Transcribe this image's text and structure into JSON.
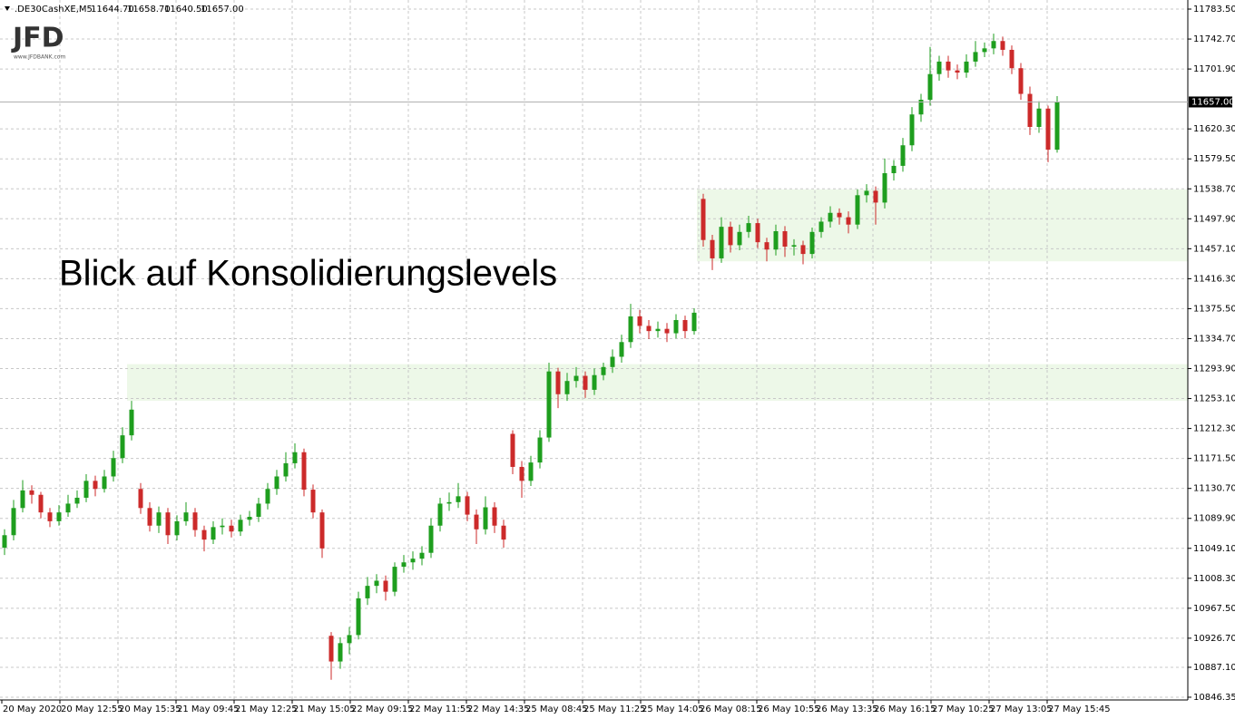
{
  "chart_data": {
    "type": "candlestick",
    "symbol": ".DE30CashXE,M5",
    "header_prices": [
      "11644.70",
      "11658.70",
      "11640.50",
      "11657.00"
    ],
    "annotation": "Blick auf Konsolidierungslevels",
    "logo": {
      "brand": "JFD",
      "url": "www.JFDBANK.com"
    },
    "up_color": "#1e9e1e",
    "down_color": "#cc2a2a",
    "grid": true,
    "ylim": [
      10842.6,
      11793.4
    ],
    "yticks": [
      {
        "value": 11783.5,
        "label": "11783.50"
      },
      {
        "value": 11742.7,
        "label": "11742.70"
      },
      {
        "value": 11701.9,
        "label": "11701.90"
      },
      {
        "value": 11620.3,
        "label": "11620.30"
      },
      {
        "value": 11579.5,
        "label": "11579.50"
      },
      {
        "value": 11538.7,
        "label": "11538.70"
      },
      {
        "value": 11497.9,
        "label": "11497.90"
      },
      {
        "value": 11457.1,
        "label": "11457.10"
      },
      {
        "value": 11416.3,
        "label": "11416.30"
      },
      {
        "value": 11375.5,
        "label": "11375.50"
      },
      {
        "value": 11334.7,
        "label": "11334.70"
      },
      {
        "value": 11293.9,
        "label": "11293.90"
      },
      {
        "value": 11253.1,
        "label": "11253.10"
      },
      {
        "value": 11212.3,
        "label": "11212.30"
      },
      {
        "value": 11171.5,
        "label": "11171.50"
      },
      {
        "value": 11130.7,
        "label": "11130.70"
      },
      {
        "value": 11089.9,
        "label": "11089.90"
      },
      {
        "value": 11049.1,
        "label": "11049.10"
      },
      {
        "value": 11008.3,
        "label": "11008.30"
      },
      {
        "value": 10967.5,
        "label": "10967.50"
      },
      {
        "value": 10926.7,
        "label": "10926.70"
      },
      {
        "value": 10887.1,
        "label": "10887.10"
      },
      {
        "value": 10846.35,
        "label": "10846.35"
      }
    ],
    "price_line": {
      "value": 11657,
      "label": "11657.00"
    },
    "zones": [
      {
        "from": 11250,
        "to": 11300
      },
      {
        "from": 11440,
        "to": 11538
      }
    ],
    "xtick_labels": [
      "20 May 2020",
      "20 May 12:55",
      "20 May 15:35",
      "21 May 09:45",
      "21 May 12:25",
      "21 May 15:05",
      "22 May 09:15",
      "22 May 11:55",
      "22 May 14:35",
      "25 May 08:45",
      "25 May 11:25",
      "25 May 14:05",
      "26 May 08:15",
      "26 May 10:55",
      "26 May 13:35",
      "26 May 16:15",
      "27 May 10:25",
      "27 May 13:05",
      "27 May 15:45"
    ],
    "open": [
      11050,
      11067,
      11104,
      11128,
      11122,
      11098,
      11086,
      11098,
      11110,
      11118,
      11141,
      11130,
      11147,
      11172,
      11203,
      11130,
      11104,
      11080,
      11098,
      11067,
      11086,
      11098,
      11074,
      11061,
      11078,
      11080,
      11072,
      11088,
      11092,
      11110,
      11130,
      11147,
      11165,
      11180,
      11129,
      11098,
      10930,
      10895,
      10920,
      10931,
      10981,
      10998,
      11005,
      10990,
      11024,
      11030,
      11035,
      11043,
      11080,
      11110,
      11112,
      11120,
      11095,
      11075,
      11105,
      11080,
      11205,
      11160,
      11141,
      11166,
      11200,
      11290,
      11259,
      11277,
      11284,
      11265,
      11285,
      11296,
      11310,
      11330,
      11365,
      11352,
      11345,
      11348,
      11342,
      11360,
      11345,
      11525,
      11469,
      11444,
      11487,
      11462,
      11480,
      11492,
      11466,
      11456,
      11481,
      11460,
      11462,
      11450,
      11480,
      11494,
      11506,
      11500,
      11490,
      11530,
      11536,
      11520,
      11560,
      11570,
      11598,
      11640,
      11660,
      11695,
      11712,
      11700,
      11697,
      11712,
      11725,
      11730,
      11740,
      11728,
      11703,
      11668,
      11623,
      11648,
      11592
    ],
    "high": [
      11075,
      11115,
      11142,
      11135,
      11126,
      11104,
      11108,
      11122,
      11128,
      11150,
      11148,
      11156,
      11182,
      11214,
      11250,
      11138,
      11112,
      11106,
      11104,
      11094,
      11112,
      11104,
      11080,
      11086,
      11090,
      11088,
      11095,
      11100,
      11118,
      11138,
      11156,
      11180,
      11192,
      11185,
      11136,
      11102,
      10935,
      10928,
      10942,
      10990,
      11010,
      11014,
      11012,
      11030,
      11040,
      11045,
      11052,
      11090,
      11118,
      11125,
      11138,
      11126,
      11102,
      11120,
      11112,
      11088,
      11210,
      11168,
      11175,
      11210,
      11302,
      11295,
      11288,
      11296,
      11290,
      11294,
      11302,
      11320,
      11340,
      11382,
      11374,
      11360,
      11358,
      11356,
      11368,
      11366,
      11376,
      11532,
      11476,
      11500,
      11494,
      11490,
      11502,
      11498,
      11472,
      11490,
      11488,
      11470,
      11468,
      11486,
      11500,
      11515,
      11512,
      11508,
      11538,
      11545,
      11542,
      11580,
      11578,
      11608,
      11650,
      11668,
      11732,
      11720,
      11720,
      11708,
      11722,
      11740,
      11738,
      11750,
      11746,
      11734,
      11710,
      11678,
      11658,
      11652,
      11665
    ],
    "low": [
      11040,
      11060,
      11098,
      11110,
      11090,
      11078,
      11080,
      11092,
      11104,
      11112,
      11120,
      11125,
      11140,
      11165,
      11196,
      11096,
      11072,
      11070,
      11055,
      11060,
      11080,
      11065,
      11045,
      11055,
      11068,
      11064,
      11066,
      11080,
      11085,
      11102,
      11122,
      11140,
      11158,
      11120,
      11090,
      11036,
      10870,
      10885,
      10905,
      10925,
      10972,
      10988,
      10978,
      10984,
      11016,
      11020,
      11026,
      11036,
      11072,
      11100,
      11104,
      11086,
      11055,
      11068,
      11070,
      11050,
      11150,
      11118,
      11134,
      11158,
      11194,
      11240,
      11250,
      11268,
      11254,
      11258,
      11278,
      11288,
      11302,
      11322,
      11342,
      11334,
      11336,
      11330,
      11335,
      11335,
      11340,
      11460,
      11428,
      11438,
      11452,
      11455,
      11472,
      11458,
      11440,
      11448,
      11446,
      11448,
      11436,
      11444,
      11472,
      11486,
      11490,
      11478,
      11484,
      11520,
      11490,
      11512,
      11550,
      11562,
      11590,
      11630,
      11652,
      11686,
      11690,
      11688,
      11690,
      11705,
      11718,
      11722,
      11720,
      11695,
      11660,
      11612,
      11615,
      11575,
      11588
    ],
    "close": [
      11067,
      11104,
      11128,
      11122,
      11098,
      11086,
      11098,
      11110,
      11118,
      11141,
      11130,
      11147,
      11172,
      11203,
      11238,
      11104,
      11080,
      11098,
      11067,
      11086,
      11098,
      11074,
      11061,
      11078,
      11080,
      11072,
      11088,
      11092,
      11110,
      11130,
      11147,
      11165,
      11180,
      11129,
      11098,
      11049,
      10895,
      10920,
      10931,
      10981,
      10998,
      11005,
      10990,
      11024,
      11030,
      11035,
      11043,
      11080,
      11110,
      11112,
      11120,
      11095,
      11075,
      11105,
      11080,
      11061,
      11160,
      11141,
      11166,
      11200,
      11290,
      11259,
      11277,
      11284,
      11265,
      11285,
      11296,
      11310,
      11330,
      11365,
      11352,
      11345,
      11348,
      11342,
      11360,
      11345,
      11370,
      11469,
      11444,
      11487,
      11462,
      11480,
      11492,
      11466,
      11456,
      11481,
      11460,
      11462,
      11450,
      11480,
      11494,
      11506,
      11500,
      11490,
      11530,
      11536,
      11520,
      11560,
      11570,
      11598,
      11640,
      11660,
      11695,
      11712,
      11700,
      11697,
      11712,
      11725,
      11730,
      11740,
      11728,
      11703,
      11668,
      11623,
      11648,
      11592,
      11657
    ]
  }
}
